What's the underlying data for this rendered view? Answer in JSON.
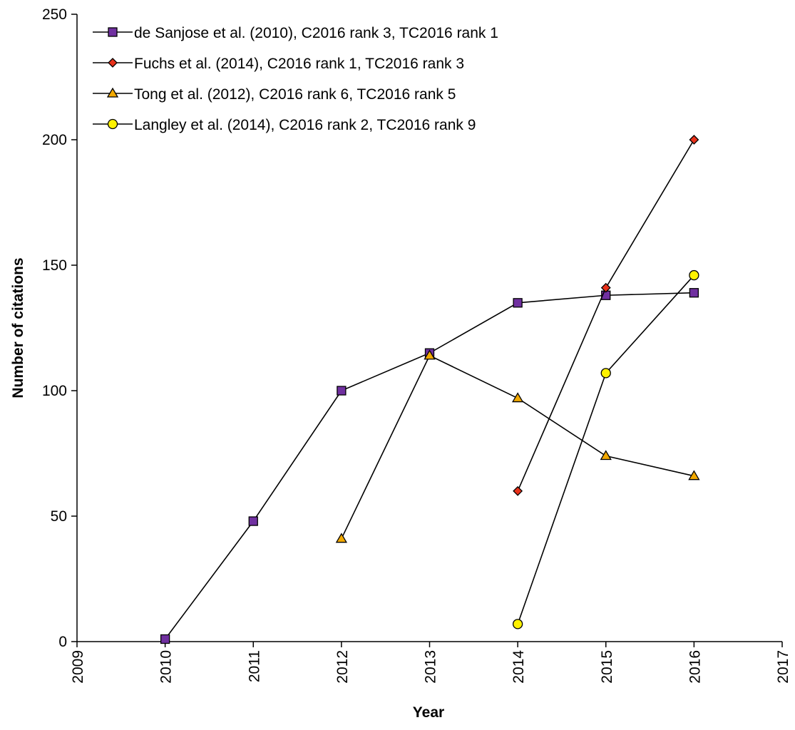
{
  "chart_data": {
    "type": "line",
    "xlabel": "Year",
    "ylabel": "Number of citations",
    "xlim": [
      2009,
      2017
    ],
    "ylim": [
      0,
      250
    ],
    "xticks": [
      "2009",
      "2010",
      "2011",
      "2012",
      "2013",
      "2014",
      "2015",
      "2016",
      "2017"
    ],
    "yticks": [
      "0",
      "50",
      "100",
      "150",
      "200",
      "250"
    ],
    "grid": false,
    "legend_position": "top-left",
    "series": [
      {
        "name": "de Sanjose et al. (2010), C2016 rank 3, TC2016 rank 1",
        "marker": "square",
        "color": "#7030A0",
        "x": [
          2010,
          2011,
          2012,
          2013,
          2014,
          2015,
          2016
        ],
        "values": [
          1,
          48,
          100,
          115,
          135,
          138,
          139
        ]
      },
      {
        "name": "Fuchs et al. (2014), C2016 rank 1, TC2016 rank 3",
        "marker": "diamond",
        "color": "#E8311A",
        "x": [
          2014,
          2015,
          2016
        ],
        "values": [
          60,
          141,
          200
        ]
      },
      {
        "name": "Tong et al. (2012), C2016 rank 6, TC2016 rank 5",
        "marker": "triangle",
        "color": "#F2A900",
        "x": [
          2012,
          2013,
          2014,
          2015,
          2016
        ],
        "values": [
          41,
          114,
          97,
          74,
          66
        ]
      },
      {
        "name": "Langley et al. (2014), C2016 rank 2, TC2016 rank 9",
        "marker": "circle",
        "color": "#FFF200",
        "x": [
          2014,
          2015,
          2016
        ],
        "values": [
          7,
          107,
          146
        ]
      }
    ]
  }
}
